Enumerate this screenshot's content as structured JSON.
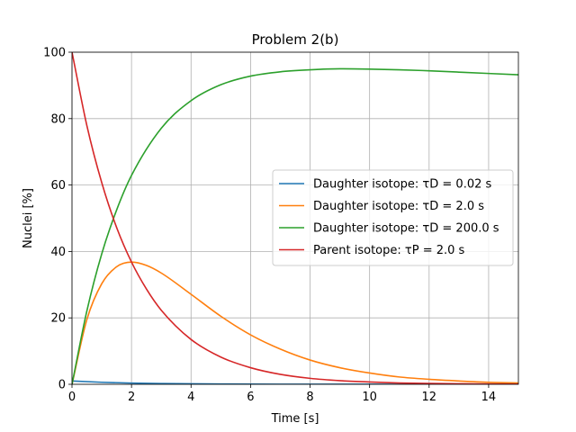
{
  "chart_data": {
    "type": "line",
    "title": "Problem 2(b)",
    "xlabel": "Time [s]",
    "ylabel": "Nuclei [%]",
    "xlim": [
      0,
      15
    ],
    "ylim": [
      0,
      100
    ],
    "xticks": [
      0,
      2,
      4,
      6,
      8,
      10,
      12,
      14
    ],
    "yticks": [
      0,
      20,
      40,
      60,
      80,
      100
    ],
    "grid": true,
    "legend_position": "center-right",
    "series": [
      {
        "name": "Daughter isotope: τD = 0.02 s",
        "color": "#1f77b4",
        "x": [
          0,
          1,
          2,
          3,
          4,
          5,
          6,
          7,
          8,
          9,
          10,
          11,
          12,
          13,
          14,
          15
        ],
        "y": [
          1.0,
          0.61,
          0.37,
          0.22,
          0.14,
          0.08,
          0.05,
          0.03,
          0.02,
          0.01,
          0.007,
          0.004,
          0.002,
          0.0015,
          0.0009,
          0.0006
        ]
      },
      {
        "name": "Daughter isotope: τD = 2.0 s",
        "color": "#ff7f0e",
        "x": [
          0,
          0.5,
          1,
          1.5,
          2,
          2.5,
          3,
          4,
          5,
          6,
          7,
          8,
          9,
          10,
          11,
          12,
          13,
          14,
          15
        ],
        "y": [
          0,
          19.5,
          30.3,
          35.4,
          36.8,
          35.8,
          33.5,
          27.1,
          20.5,
          14.9,
          10.6,
          7.3,
          5.0,
          3.4,
          2.2,
          1.5,
          1.0,
          0.6,
          0.4
        ]
      },
      {
        "name": "Daughter isotope: τD = 200.0 s",
        "color": "#2ca02c",
        "x": [
          0,
          0.5,
          1,
          1.5,
          2,
          3,
          4,
          5,
          6,
          7,
          8,
          9,
          10,
          11,
          12,
          13,
          14,
          15
        ],
        "y": [
          0,
          22.1,
          39.3,
          52.5,
          62.9,
          77.1,
          85.4,
          90.2,
          92.8,
          94.1,
          94.7,
          95.0,
          94.9,
          94.7,
          94.4,
          94.0,
          93.6,
          93.2
        ]
      },
      {
        "name": "Parent isotope: τP = 2.0 s",
        "color": "#d62728",
        "x": [
          0,
          0.5,
          1,
          1.5,
          2,
          2.5,
          3,
          4,
          5,
          6,
          7,
          8,
          9,
          10,
          11,
          12,
          13,
          14,
          15
        ],
        "y": [
          100,
          77.9,
          60.7,
          47.2,
          36.8,
          28.7,
          22.3,
          13.5,
          8.2,
          5.0,
          3.0,
          1.8,
          1.1,
          0.7,
          0.4,
          0.25,
          0.15,
          0.09,
          0.06
        ]
      }
    ]
  }
}
